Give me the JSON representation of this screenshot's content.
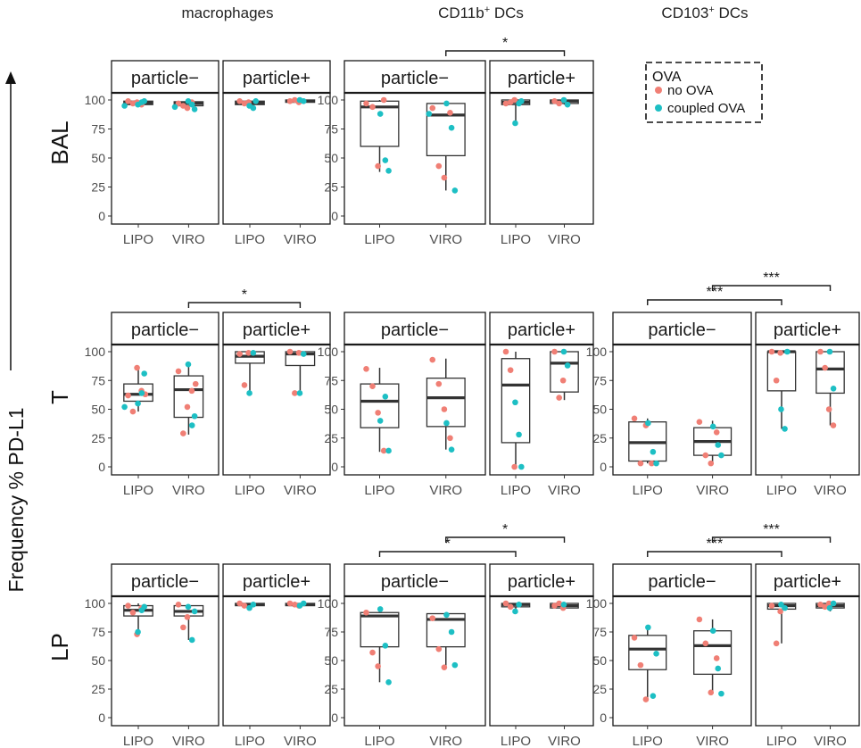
{
  "chart_data": {
    "type": "box",
    "title": "",
    "ylabel": "Frequency % PD-L1",
    "ylim": [
      0,
      100
    ],
    "yticks": [
      "0",
      "25",
      "50",
      "75",
      "100"
    ],
    "column_titles": [
      {
        "key": "mac",
        "label": "macrophages",
        "sup": ""
      },
      {
        "key": "cd11b",
        "label": "CD11b",
        "sup": "+",
        "suffix": " DCs"
      },
      {
        "key": "cd103",
        "label": "CD103",
        "sup": "+",
        "suffix": " DCs"
      }
    ],
    "row_titles": [
      "BAL",
      "T",
      "LP"
    ],
    "facet_labels": [
      "particle−",
      "particle+"
    ],
    "categories": [
      "LIPO",
      "VIRO"
    ],
    "legend": {
      "title": "OVA",
      "position": "top-right",
      "entries": [
        {
          "label": "no OVA",
          "color": "#F07F75"
        },
        {
          "label": "coupled OVA",
          "color": "#1DBFC4"
        }
      ]
    },
    "colors": {
      "no_ova": "#F07F75",
      "coupled_ova": "#1DBFC4",
      "box": "#333333"
    },
    "significance": "*",
    "panels": [
      {
        "row": "BAL",
        "column": "macrophages",
        "facets": [
          {
            "facet": "particle−",
            "boxes": [
              {
                "category": "LIPO",
                "q1": 96,
                "median": 97.5,
                "q3": 99,
                "min": 95,
                "max": 99.5,
                "no_ova": [
                  99,
                  97,
                  98,
                  96
                ],
                "coupled_ova": [
                  96,
                  98,
                  99,
                  95
                ]
              },
              {
                "category": "VIRO",
                "q1": 95,
                "median": 97,
                "q3": 98.5,
                "min": 92,
                "max": 99,
                "no_ova": [
                  97,
                  95,
                  93,
                  98
                ],
                "coupled_ova": [
                  99,
                  96,
                  92,
                  94
                ]
              }
            ]
          },
          {
            "facet": "particle+",
            "boxes": [
              {
                "category": "LIPO",
                "q1": 96,
                "median": 97.5,
                "q3": 99,
                "min": 93,
                "max": 100,
                "no_ova": [
                  99,
                  97,
                  98
                ],
                "coupled_ova": [
                  95,
                  93,
                  99
                ]
              },
              {
                "category": "VIRO",
                "q1": 98,
                "median": 99,
                "q3": 100,
                "min": 98,
                "max": 100,
                "no_ova": [
                  99,
                  100,
                  98
                ],
                "coupled_ova": [
                  100,
                  99
                ]
              }
            ]
          }
        ],
        "brackets": []
      },
      {
        "row": "BAL",
        "column": "CD11b+ DCs",
        "facets": [
          {
            "facet": "particle−",
            "boxes": [
              {
                "category": "LIPO",
                "q1": 60,
                "median": 94,
                "q3": 99,
                "min": 38,
                "max": 100,
                "no_ova": [
                  97,
                  94,
                  43,
                  100
                ],
                "coupled_ova": [
                  88,
                  48,
                  39
                ]
              },
              {
                "category": "VIRO",
                "q1": 52,
                "median": 87,
                "q3": 97,
                "min": 22,
                "max": 99,
                "no_ova": [
                  93,
                  43,
                  33,
                  89
                ],
                "coupled_ova": [
                  97,
                  76,
                  22,
                  88
                ]
              }
            ]
          },
          {
            "facet": "particle+",
            "boxes": [
              {
                "category": "LIPO",
                "q1": 96,
                "median": 98,
                "q3": 100,
                "min": 80,
                "max": 100,
                "no_ova": [
                  97,
                  98,
                  100
                ],
                "coupled_ova": [
                  80,
                  97,
                  99
                ]
              },
              {
                "category": "VIRO",
                "q1": 97,
                "median": 99,
                "q3": 100,
                "min": 96,
                "max": 100,
                "no_ova": [
                  99,
                  97
                ],
                "coupled_ova": [
                  100,
                  96
                ]
              }
            ]
          }
        ],
        "brackets": [
          {
            "from": "particle− VIRO",
            "to": "particle+ VIRO",
            "label": "*"
          }
        ]
      },
      {
        "row": "T",
        "column": "macrophages",
        "facets": [
          {
            "facet": "particle−",
            "boxes": [
              {
                "category": "LIPO",
                "q1": 57,
                "median": 63,
                "q3": 72,
                "min": 48,
                "max": 87,
                "no_ova": [
                  62,
                  48,
                  86,
                  66,
                  63
                ],
                "coupled_ova": [
                  55,
                  64,
                  81,
                  52
                ]
              },
              {
                "category": "VIRO",
                "q1": 43,
                "median": 67,
                "q3": 79,
                "min": 28,
                "max": 89,
                "no_ova": [
                  83,
                  29,
                  52,
                  66,
                  72
                ],
                "coupled_ova": [
                  89,
                  36,
                  44
                ]
              }
            ]
          },
          {
            "facet": "particle+",
            "boxes": [
              {
                "category": "LIPO",
                "q1": 90,
                "median": 96,
                "q3": 100,
                "min": 63,
                "max": 100,
                "no_ova": [
                  98,
                  71,
                  99
                ],
                "coupled_ova": [
                  64,
                  99
                ]
              },
              {
                "category": "VIRO",
                "q1": 88,
                "median": 98,
                "q3": 100,
                "min": 63,
                "max": 100,
                "no_ova": [
                  100,
                  64,
                  99
                ],
                "coupled_ova": [
                  64,
                  98
                ]
              }
            ]
          }
        ],
        "brackets": [
          {
            "from": "particle− VIRO",
            "to": "particle+ VIRO",
            "label": "*"
          }
        ]
      },
      {
        "row": "T",
        "column": "CD11b+ DCs",
        "facets": [
          {
            "facet": "particle−",
            "boxes": [
              {
                "category": "LIPO",
                "q1": 34,
                "median": 57,
                "q3": 72,
                "min": 13,
                "max": 86,
                "no_ova": [
                  85,
                  70,
                  47,
                  14
                ],
                "coupled_ova": [
                  40,
                  61,
                  14
                ]
              },
              {
                "category": "VIRO",
                "q1": 35,
                "median": 60,
                "q3": 77,
                "min": 15,
                "max": 94,
                "no_ova": [
                  93,
                  72,
                  50,
                  25
                ],
                "coupled_ova": [
                  38,
                  15
                ]
              }
            ]
          },
          {
            "facet": "particle+",
            "boxes": [
              {
                "category": "LIPO",
                "q1": 21,
                "median": 71,
                "q3": 94,
                "min": 0,
                "max": 100,
                "no_ova": [
                  100,
                  84,
                  0
                ],
                "coupled_ova": [
                  56,
                  28,
                  0
                ]
              },
              {
                "category": "VIRO",
                "q1": 65,
                "median": 90,
                "q3": 100,
                "min": 58,
                "max": 100,
                "no_ova": [
                  100,
                  60,
                  75
                ],
                "coupled_ova": [
                  100,
                  88
                ]
              }
            ]
          }
        ],
        "brackets": []
      },
      {
        "row": "T",
        "column": "CD103+ DCs",
        "facets": [
          {
            "facet": "particle−",
            "boxes": [
              {
                "category": "LIPO",
                "q1": 5,
                "median": 21,
                "q3": 39,
                "min": 3,
                "max": 42,
                "no_ova": [
                  42,
                  3,
                  36,
                  3
                ],
                "coupled_ova": [
                  38,
                  13,
                  3
                ]
              },
              {
                "category": "VIRO",
                "q1": 10,
                "median": 22,
                "q3": 34,
                "min": 3,
                "max": 40,
                "no_ova": [
                  39,
                  10,
                  3,
                  30
                ],
                "coupled_ova": [
                  35,
                  19,
                  10
                ]
              }
            ]
          },
          {
            "facet": "particle+",
            "boxes": [
              {
                "category": "LIPO",
                "q1": 66,
                "median": 100,
                "q3": 100,
                "min": 33,
                "max": 100,
                "no_ova": [
                  100,
                  75,
                  99
                ],
                "coupled_ova": [
                  50,
                  33,
                  100
                ]
              },
              {
                "category": "VIRO",
                "q1": 64,
                "median": 85,
                "q3": 100,
                "min": 36,
                "max": 100,
                "no_ova": [
                  100,
                  86,
                  50,
                  36
                ],
                "coupled_ova": [
                  100,
                  68
                ]
              }
            ]
          }
        ],
        "brackets": [
          {
            "from": "particle− LIPO",
            "to": "particle+ LIPO",
            "label": "***"
          },
          {
            "from": "particle− VIRO",
            "to": "particle+ VIRO",
            "label": "***"
          }
        ]
      },
      {
        "row": "LP",
        "column": "macrophages",
        "facets": [
          {
            "facet": "particle−",
            "boxes": [
              {
                "category": "LIPO",
                "q1": 89,
                "median": 94,
                "q3": 98,
                "min": 73,
                "max": 100,
                "no_ova": [
                  98,
                  92,
                  73,
                  96
                ],
                "coupled_ova": [
                  75,
                  94,
                  97
                ]
              },
              {
                "category": "VIRO",
                "q1": 89,
                "median": 93,
                "q3": 98,
                "min": 68,
                "max": 99,
                "no_ova": [
                  99,
                  79,
                  88
                ],
                "coupled_ova": [
                  97,
                  68,
                  93
                ]
              }
            ]
          },
          {
            "facet": "particle+",
            "boxes": [
              {
                "category": "LIPO",
                "q1": 98,
                "median": 99,
                "q3": 100,
                "min": 95,
                "max": 100,
                "no_ova": [
                  100,
                  98
                ],
                "coupled_ova": [
                  96,
                  99
                ]
              },
              {
                "category": "VIRO",
                "q1": 98,
                "median": 99,
                "q3": 100,
                "min": 97,
                "max": 100,
                "no_ova": [
                  100,
                  99,
                  98
                ],
                "coupled_ova": [
                  98,
                  100
                ]
              }
            ]
          }
        ],
        "brackets": []
      },
      {
        "row": "LP",
        "column": "CD11b+ DCs",
        "facets": [
          {
            "facet": "particle−",
            "boxes": [
              {
                "category": "LIPO",
                "q1": 62,
                "median": 89,
                "q3": 92,
                "min": 31,
                "max": 96,
                "no_ova": [
                  92,
                  57,
                  45
                ],
                "coupled_ova": [
                  95,
                  63,
                  31
                ]
              },
              {
                "category": "VIRO",
                "q1": 62,
                "median": 86,
                "q3": 91,
                "min": 44,
                "max": 92,
                "no_ova": [
                  87,
                  60,
                  44
                ],
                "coupled_ova": [
                  90,
                  75,
                  46
                ]
              }
            ]
          },
          {
            "facet": "particle+",
            "boxes": [
              {
                "category": "LIPO",
                "q1": 97,
                "median": 99,
                "q3": 100,
                "min": 93,
                "max": 100,
                "no_ova": [
                  100,
                  97
                ],
                "coupled_ova": [
                  93,
                  99
                ]
              },
              {
                "category": "VIRO",
                "q1": 96,
                "median": 98,
                "q3": 100,
                "min": 96,
                "max": 100,
                "no_ova": [
                  98,
                  100,
                  96
                ],
                "coupled_ova": [
                  99
                ]
              }
            ]
          }
        ],
        "brackets": [
          {
            "from": "particle− LIPO",
            "to": "particle+ LIPO",
            "label": "*"
          },
          {
            "from": "particle− VIRO",
            "to": "particle+ VIRO",
            "label": "*"
          }
        ]
      },
      {
        "row": "LP",
        "column": "CD103+ DCs",
        "facets": [
          {
            "facet": "particle−",
            "boxes": [
              {
                "category": "LIPO",
                "q1": 42,
                "median": 60,
                "q3": 72,
                "min": 17,
                "max": 80,
                "no_ova": [
                  70,
                  46,
                  16
                ],
                "coupled_ova": [
                  79,
                  19,
                  56
                ]
              },
              {
                "category": "VIRO",
                "q1": 38,
                "median": 63,
                "q3": 76,
                "min": 21,
                "max": 86,
                "no_ova": [
                  86,
                  65,
                  22,
                  52
                ],
                "coupled_ova": [
                  76,
                  43,
                  21
                ]
              }
            ]
          },
          {
            "facet": "particle+",
            "boxes": [
              {
                "category": "LIPO",
                "q1": 95,
                "median": 98,
                "q3": 100,
                "min": 65,
                "max": 100,
                "no_ova": [
                  98,
                  65,
                  93
                ],
                "coupled_ova": [
                  99,
                  96
                ]
              },
              {
                "category": "VIRO",
                "q1": 96,
                "median": 98,
                "q3": 100,
                "min": 93,
                "max": 100,
                "no_ova": [
                  99,
                  97,
                  100
                ],
                "coupled_ova": [
                  96,
                  100
                ]
              }
            ]
          }
        ],
        "brackets": [
          {
            "from": "particle− LIPO",
            "to": "particle+ LIPO",
            "label": "***"
          },
          {
            "from": "particle− VIRO",
            "to": "particle+ VIRO",
            "label": "***"
          }
        ]
      }
    ]
  }
}
